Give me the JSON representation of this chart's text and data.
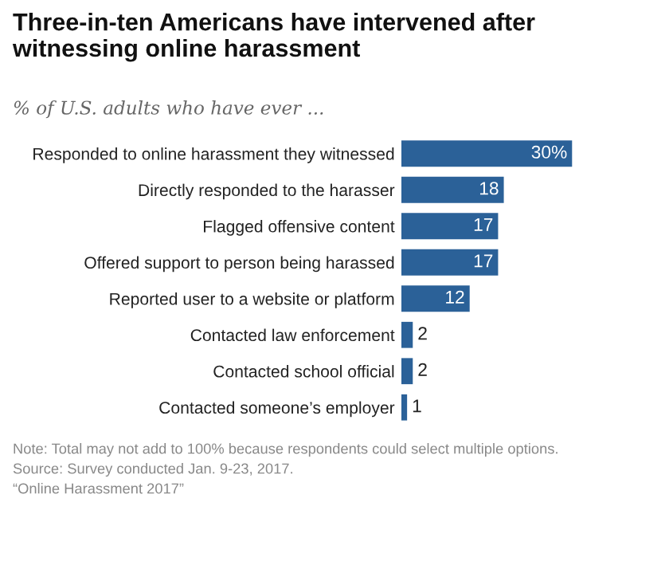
{
  "chart_data": {
    "type": "bar",
    "orientation": "horizontal",
    "title": "Three-in-ten Americans have intervened after witnessing online harassment",
    "subtitle": "% of U.S. adults who have ever ...",
    "categories": [
      "Responded to online harassment they witnessed",
      "Directly responded to the harasser",
      "Flagged offensive content",
      "Offered support to person being harassed",
      "Reported user to a website or platform",
      "Contacted law enforcement",
      "Contacted school official",
      "Contacted someone’s employer"
    ],
    "values": [
      30,
      18,
      17,
      17,
      12,
      2,
      2,
      1
    ],
    "value_labels": [
      "30%",
      "18",
      "17",
      "17",
      "12",
      "2",
      "2",
      "1"
    ],
    "color": "#2b6198",
    "tick_labels": "y",
    "grid": false,
    "legend": false,
    "annotations": [
      "Note: Total may not add to 100% because respondents could select multiple options.",
      "Source: Survey conducted Jan. 9-23, 2017.",
      "“Online Harassment 2017”"
    ]
  }
}
